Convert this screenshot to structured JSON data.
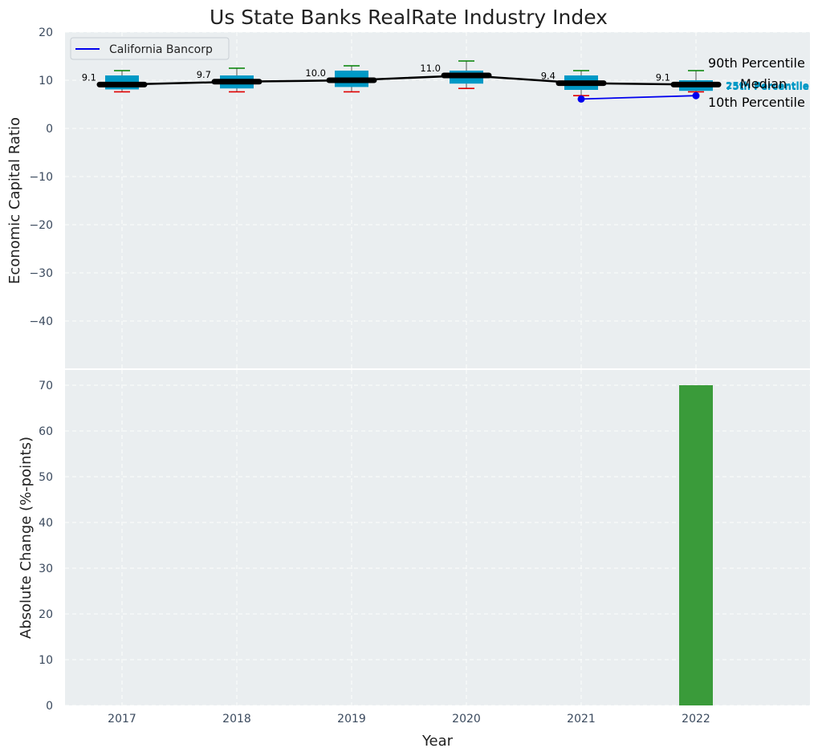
{
  "chart_data": [
    {
      "type": "box",
      "title": "Us State Banks RealRate Industry Index",
      "ylabel": "Economic Capital Ratio",
      "ylim": [
        -50,
        20
      ],
      "yticks": [
        20,
        10,
        0,
        -10,
        -20,
        -30,
        -40
      ],
      "categories": [
        "2017",
        "2018",
        "2019",
        "2020",
        "2021",
        "2022"
      ],
      "p10": [
        7.6,
        7.6,
        7.6,
        8.3,
        6.8,
        7.6
      ],
      "p25": [
        8.1,
        8.3,
        8.6,
        9.3,
        8.0,
        7.8
      ],
      "median": [
        9.1,
        9.7,
        10.0,
        11.0,
        9.4,
        9.1
      ],
      "p75": [
        11.0,
        11.0,
        12.0,
        12.0,
        11.0,
        10.0
      ],
      "p90": [
        12.0,
        12.5,
        13.0,
        14.0,
        12.0,
        12.0
      ],
      "median_labels": [
        "9.1",
        "9.7",
        "10.0",
        "11.0",
        "9.4",
        "9.1"
      ],
      "company": {
        "name": "California Bancorp",
        "x": [
          "2021",
          "2022"
        ],
        "values": [
          6.1,
          6.8
        ],
        "color": "#0000ee"
      },
      "percentile_labels": {
        "p90": "90th Percentile",
        "p75": "75th Percentile",
        "median": "Median",
        "p25": "25th Percentile",
        "p10": "10th Percentile"
      },
      "legend_position": "top-left",
      "grid": true,
      "colors": {
        "box": "#0099c6",
        "whisker_top": "#008000",
        "whisker_bottom": "#e00000",
        "median_line": "#000000",
        "background": "#eaeef0"
      }
    },
    {
      "type": "bar",
      "xlabel": "Year",
      "ylabel": "Absolute Change (%-points)",
      "ylim": [
        0,
        73
      ],
      "yticks": [
        0,
        10,
        20,
        30,
        40,
        50,
        60,
        70
      ],
      "categories": [
        "2017",
        "2018",
        "2019",
        "2020",
        "2021",
        "2022"
      ],
      "values": [
        null,
        null,
        null,
        null,
        null,
        70
      ],
      "color": "#3a9b3a",
      "grid": true
    }
  ]
}
